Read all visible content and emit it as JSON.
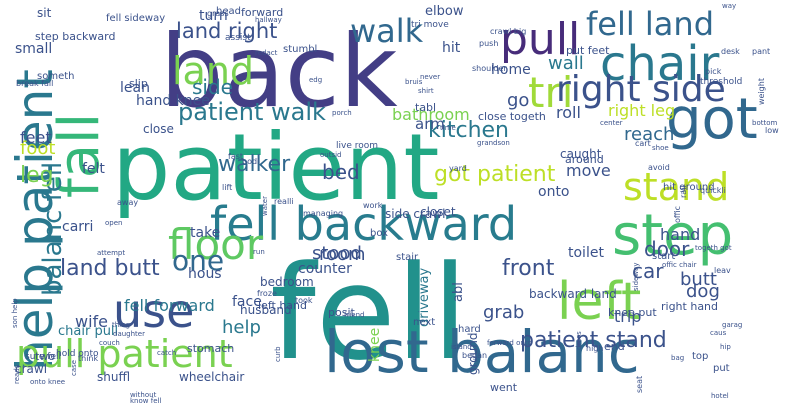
{
  "words": [
    {
      "text": "fell",
      "weight": 100,
      "color": "#21918c"
    },
    {
      "text": "patient",
      "weight": 98,
      "color": "#22a884"
    },
    {
      "text": "back",
      "weight": 95,
      "color": "#433e85"
    },
    {
      "text": "lost balanc",
      "weight": 62,
      "color": "#31688e"
    },
    {
      "text": "fell backward",
      "weight": 55,
      "color": "#287c8e"
    },
    {
      "text": "use",
      "weight": 52,
      "color": "#3b528b"
    },
    {
      "text": "step",
      "weight": 52,
      "color": "#44bf70"
    },
    {
      "text": "got",
      "weight": 50,
      "color": "#31688e"
    },
    {
      "text": "fall",
      "weight": 50,
      "color": "#35b779"
    },
    {
      "text": "help patient",
      "weight": 45,
      "color": "#2a788e"
    },
    {
      "text": "left",
      "weight": 44,
      "color": "#7ad151"
    },
    {
      "text": "pull patient",
      "weight": 42,
      "color": "#7ad151"
    },
    {
      "text": "chair",
      "weight": 40,
      "color": "#2a788e"
    },
    {
      "text": "pull",
      "weight": 38,
      "color": "#472c7a"
    },
    {
      "text": "floor",
      "weight": 36,
      "color": "#5ec962"
    },
    {
      "text": "land",
      "weight": 34,
      "color": "#7ad151"
    },
    {
      "text": "fell land",
      "weight": 32,
      "color": "#31688e"
    },
    {
      "text": "stand",
      "weight": 32,
      "color": "#bddf26"
    },
    {
      "text": "tri",
      "weight": 30,
      "color": "#a0da39"
    },
    {
      "text": "right side",
      "weight": 30,
      "color": "#3b528b"
    },
    {
      "text": "walk",
      "weight": 26,
      "color": "#31688e"
    },
    {
      "text": "balanc fell",
      "weight": 22,
      "color": "#2a788e"
    },
    {
      "text": "one",
      "weight": 24,
      "color": "#31688e"
    },
    {
      "text": "patient walk",
      "weight": 20,
      "color": "#2a788e"
    },
    {
      "text": "land right",
      "weight": 18,
      "color": "#3b528b"
    },
    {
      "text": "kitchen",
      "weight": 20,
      "color": "#2a788e"
    },
    {
      "text": "land butt",
      "weight": 20,
      "color": "#3b528b"
    },
    {
      "text": "patient stand",
      "weight": 18,
      "color": "#3b528b"
    },
    {
      "text": "got patient",
      "weight": 18,
      "color": "#bddf26"
    },
    {
      "text": "side",
      "weight": 18,
      "color": "#2a788e"
    },
    {
      "text": "walker",
      "weight": 18,
      "color": "#31688e"
    },
    {
      "text": "leg",
      "weight": 18,
      "color": "#7ad151"
    },
    {
      "text": "front",
      "weight": 18,
      "color": "#3b528b"
    },
    {
      "text": "bed",
      "weight": 18,
      "color": "#3b528b"
    },
    {
      "text": "door",
      "weight": 18,
      "color": "#3b528b"
    },
    {
      "text": "wall",
      "weight": 16,
      "color": "#2a788e"
    },
    {
      "text": "go",
      "weight": 16,
      "color": "#3b528b"
    },
    {
      "text": "reach",
      "weight": 16,
      "color": "#31688e"
    },
    {
      "text": "help",
      "weight": 16,
      "color": "#2a788e"
    },
    {
      "text": "car",
      "weight": 16,
      "color": "#3b528b"
    },
    {
      "text": "grab",
      "weight": 16,
      "color": "#3b528b"
    },
    {
      "text": "foot",
      "weight": 16,
      "color": "#bddf26"
    },
    {
      "text": "fell forward",
      "weight": 15,
      "color": "#2a788e"
    },
    {
      "text": "hand",
      "weight": 15,
      "color": "#3b528b"
    },
    {
      "text": "stood",
      "weight": 15,
      "color": "#3b528b"
    },
    {
      "text": "trip",
      "weight": 14,
      "color": "#3b528b"
    },
    {
      "text": "wife",
      "weight": 14,
      "color": "#3b528b"
    },
    {
      "text": "right leg",
      "weight": 14,
      "color": "#bddf26"
    },
    {
      "text": "room",
      "weight": 14,
      "color": "#3b528b"
    },
    {
      "text": "dog",
      "weight": 14,
      "color": "#3b528b"
    },
    {
      "text": "butt",
      "weight": 14,
      "color": "#3b528b"
    },
    {
      "text": "knee",
      "weight": 14,
      "color": "#7ad151"
    },
    {
      "text": "bathroom",
      "weight": 13,
      "color": "#7ad151"
    },
    {
      "text": "move",
      "weight": 13,
      "color": "#3b528b"
    },
    {
      "text": "roll",
      "weight": 13,
      "color": "#3b528b"
    },
    {
      "text": "arm",
      "weight": 13,
      "color": "#3b528b"
    },
    {
      "text": "feet",
      "weight": 13,
      "color": "#3b528b"
    },
    {
      "text": "turn",
      "weight": 13,
      "color": "#3b528b"
    },
    {
      "text": "small",
      "weight": 12,
      "color": "#3b528b"
    },
    {
      "text": "lean",
      "weight": 12,
      "color": "#3b528b"
    },
    {
      "text": "hand knee",
      "weight": 12,
      "color": "#3b528b"
    },
    {
      "text": "home",
      "weight": 12,
      "color": "#3b528b"
    },
    {
      "text": "onto",
      "weight": 12,
      "color": "#3b528b"
    },
    {
      "text": "hit",
      "weight": 12,
      "color": "#3b528b"
    },
    {
      "text": "elbow",
      "weight": 12,
      "color": "#3b528b"
    },
    {
      "text": "toilet",
      "weight": 12,
      "color": "#3b528b"
    },
    {
      "text": "carri",
      "weight": 12,
      "color": "#3b528b"
    },
    {
      "text": "take",
      "weight": 12,
      "color": "#3b528b"
    },
    {
      "text": "face",
      "weight": 12,
      "color": "#3b528b"
    },
    {
      "text": "counter",
      "weight": 12,
      "color": "#3b528b"
    },
    {
      "text": "hous",
      "weight": 12,
      "color": "#3b528b"
    },
    {
      "text": "felt",
      "weight": 12,
      "color": "#3b528b"
    },
    {
      "text": "abl",
      "weight": 11,
      "color": "#3b528b"
    },
    {
      "text": "driveway",
      "weight": 11,
      "color": "#2a788e"
    },
    {
      "text": "chair pull",
      "weight": 11,
      "color": "#2a788e"
    },
    {
      "text": "backward land",
      "weight": 11,
      "color": "#3b528b"
    },
    {
      "text": "husband",
      "weight": 11,
      "color": "#3b528b"
    },
    {
      "text": "bedroom",
      "weight": 11,
      "color": "#3b528b"
    },
    {
      "text": "close",
      "weight": 11,
      "color": "#3b528b"
    },
    {
      "text": "sit",
      "weight": 11,
      "color": "#3b528b"
    },
    {
      "text": "wheelchair",
      "weight": 11,
      "color": "#3b528b"
    },
    {
      "text": "shuffl",
      "weight": 10,
      "color": "#3b528b"
    },
    {
      "text": "crawl",
      "weight": 10,
      "color": "#3b528b"
    },
    {
      "text": "two",
      "weight": 10,
      "color": "#3b528b"
    },
    {
      "text": "stomach",
      "weight": 10,
      "color": "#3b528b"
    },
    {
      "text": "caught",
      "weight": 10,
      "color": "#3b528b"
    },
    {
      "text": "around",
      "weight": 10,
      "color": "#3b528b"
    },
    {
      "text": "side crawl",
      "weight": 10,
      "color": "#3b528b"
    },
    {
      "text": "closet",
      "weight": 10,
      "color": "#3b528b"
    },
    {
      "text": "ground",
      "weight": 10,
      "color": "#3b528b"
    },
    {
      "text": "went",
      "weight": 10,
      "color": "#3b528b"
    },
    {
      "text": "posit",
      "weight": 10,
      "color": "#3b528b"
    },
    {
      "text": "tabl",
      "weight": 10,
      "color": "#3b528b"
    },
    {
      "text": "step backward",
      "weight": 10,
      "color": "#3b528b"
    },
    {
      "text": "knee put",
      "weight": 10,
      "color": "#3b528b"
    },
    {
      "text": "right hand",
      "weight": 10,
      "color": "#3b528b"
    },
    {
      "text": "left hand",
      "weight": 10,
      "color": "#3b528b"
    },
    {
      "text": "hit ground",
      "weight": 10,
      "color": "#3b528b"
    },
    {
      "text": "close togeth",
      "weight": 10,
      "color": "#3b528b"
    },
    {
      "text": "put feet",
      "weight": 10,
      "color": "#3b528b"
    },
    {
      "text": "forward",
      "weight": 10,
      "color": "#3b528b"
    },
    {
      "text": "head",
      "weight": 10,
      "color": "#3b528b"
    },
    {
      "text": "end",
      "weight": 9,
      "color": "#3b528b"
    },
    {
      "text": "fell sideway",
      "weight": 9,
      "color": "#3b528b"
    },
    {
      "text": "slip",
      "weight": 9,
      "color": "#3b528b"
    },
    {
      "text": "someth",
      "weight": 9,
      "color": "#3b528b"
    },
    {
      "text": "stumbl",
      "weight": 9,
      "color": "#3b528b"
    },
    {
      "text": "box",
      "weight": 9,
      "color": "#3b528b"
    },
    {
      "text": "stair",
      "weight": 9,
      "color": "#3b528b"
    },
    {
      "text": "start",
      "weight": 9,
      "color": "#3b528b"
    },
    {
      "text": "next",
      "weight": 9,
      "color": "#3b528b"
    },
    {
      "text": "put",
      "weight": 9,
      "color": "#3b528b"
    },
    {
      "text": "top",
      "weight": 9,
      "color": "#3b528b"
    },
    {
      "text": "hard",
      "weight": 9,
      "color": "#3b528b"
    },
    {
      "text": "hold onto",
      "weight": 9,
      "color": "#3b528b"
    },
    {
      "text": "sure fell",
      "weight": 9,
      "color": "#3b528b"
    },
    {
      "text": "grass",
      "weight": 9,
      "color": "#3b528b"
    },
    {
      "text": "break fall",
      "weight": 9,
      "color": "#3b528b"
    },
    {
      "text": "live room",
      "weight": 9,
      "color": "#3b528b"
    },
    {
      "text": "tri move",
      "weight": 9,
      "color": "#3b528b"
    },
    {
      "text": "push",
      "weight": 9,
      "color": "#3b528b"
    },
    {
      "text": "shoulder",
      "weight": 9,
      "color": "#3b528b"
    },
    {
      "text": "crawl big",
      "weight": 9,
      "color": "#3b528b"
    },
    {
      "text": "assist",
      "weight": 9,
      "color": "#3b528b"
    },
    {
      "text": "threshold",
      "weight": 9,
      "color": "#3b528b"
    },
    {
      "text": "pick",
      "weight": 9,
      "color": "#3b528b"
    },
    {
      "text": "desk",
      "weight": 9,
      "color": "#3b528b"
    },
    {
      "text": "pant",
      "weight": 9,
      "color": "#3b528b"
    },
    {
      "text": "bottom",
      "weight": 9,
      "color": "#3b528b"
    },
    {
      "text": "weight",
      "weight": 8,
      "color": "#3b528b"
    },
    {
      "text": "shoe",
      "weight": 8,
      "color": "#3b528b"
    },
    {
      "text": "low",
      "weight": 8,
      "color": "#3b528b"
    },
    {
      "text": "cart",
      "weight": 8,
      "color": "#3b528b"
    },
    {
      "text": "avoid",
      "weight": 8,
      "color": "#3b528b"
    },
    {
      "text": "quickli",
      "weight": 8,
      "color": "#3b528b"
    },
    {
      "text": "togeth got",
      "weight": 8,
      "color": "#3b528b"
    },
    {
      "text": "leav",
      "weight": 8,
      "color": "#3b528b"
    },
    {
      "text": "rail",
      "weight": 8,
      "color": "#3b528b"
    },
    {
      "text": "offic",
      "weight": 8,
      "color": "#3b528b"
    },
    {
      "text": "offic chair",
      "weight": 8,
      "color": "#3b528b"
    },
    {
      "text": "sideway",
      "weight": 8,
      "color": "#3b528b"
    },
    {
      "text": "hip",
      "weight": 8,
      "color": "#3b528b"
    },
    {
      "text": "caus",
      "weight": 8,
      "color": "#3b528b"
    },
    {
      "text": "garag",
      "weight": 8,
      "color": "#3b528b"
    },
    {
      "text": "bag",
      "weight": 8,
      "color": "#3b528b"
    },
    {
      "text": "hotel",
      "weight": 8,
      "color": "#3b528b"
    },
    {
      "text": "seat",
      "weight": 8,
      "color": "#3b528b"
    },
    {
      "text": "high",
      "weight": 8,
      "color": "#3b528b"
    },
    {
      "text": "dress",
      "weight": 8,
      "color": "#3b528b"
    },
    {
      "text": "began",
      "weight": 8,
      "color": "#3b528b"
    },
    {
      "text": "forward onto",
      "weight": 8,
      "color": "#3b528b"
    },
    {
      "text": "island",
      "weight": 8,
      "color": "#3b528b"
    },
    {
      "text": "work",
      "weight": 8,
      "color": "#3b528b"
    },
    {
      "text": "run",
      "weight": 8,
      "color": "#3b528b"
    },
    {
      "text": "water",
      "weight": 8,
      "color": "#3b528b"
    },
    {
      "text": "curb",
      "weight": 8,
      "color": "#3b528b"
    },
    {
      "text": "yard",
      "weight": 8,
      "color": "#3b528b"
    },
    {
      "text": "fast",
      "weight": 8,
      "color": "#3b528b"
    },
    {
      "text": "lift",
      "weight": 8,
      "color": "#3b528b"
    },
    {
      "text": "realli",
      "weight": 8,
      "color": "#3b528b"
    },
    {
      "text": "bodi",
      "weight": 8,
      "color": "#3b528b"
    },
    {
      "text": "managing",
      "weight": 8,
      "color": "#3b528b"
    },
    {
      "text": "away",
      "weight": 8,
      "color": "#3b528b"
    },
    {
      "text": "open",
      "weight": 8,
      "color": "#3b528b"
    },
    {
      "text": "attempt",
      "weight": 8,
      "color": "#3b528b"
    },
    {
      "text": "thing",
      "weight": 8,
      "color": "#3b528b"
    },
    {
      "text": "catch",
      "weight": 8,
      "color": "#3b528b"
    },
    {
      "text": "daughter",
      "weight": 8,
      "color": "#3b528b"
    },
    {
      "text": "think",
      "weight": 8,
      "color": "#3b528b"
    },
    {
      "text": "couch",
      "weight": 8,
      "color": "#3b528b"
    },
    {
      "text": "froze",
      "weight": 8,
      "color": "#3b528b"
    },
    {
      "text": "took",
      "weight": 8,
      "color": "#3b528b"
    },
    {
      "text": "friend",
      "weight": 8,
      "color": "#3b528b"
    },
    {
      "text": "case",
      "weight": 8,
      "color": "#3b528b"
    },
    {
      "text": "know fell",
      "weight": 8,
      "color": "#3b528b"
    },
    {
      "text": "without",
      "weight": 8,
      "color": "#3b528b"
    },
    {
      "text": "onto knee",
      "weight": 8,
      "color": "#3b528b"
    },
    {
      "text": "reads",
      "weight": 8,
      "color": "#3b528b"
    },
    {
      "text": "son help",
      "weight": 8,
      "color": "#3b528b"
    },
    {
      "text": "hallway",
      "weight": 8,
      "color": "#3b528b"
    },
    {
      "text": "redact",
      "weight": 8,
      "color": "#3b528b"
    },
    {
      "text": "bruis",
      "weight": 8,
      "color": "#3b528b"
    },
    {
      "text": "edg",
      "weight": 8,
      "color": "#3b528b"
    },
    {
      "text": "porch",
      "weight": 8,
      "color": "#3b528b"
    },
    {
      "text": "never",
      "weight": 8,
      "color": "#3b528b"
    },
    {
      "text": "grandson",
      "weight": 8,
      "color": "#3b528b"
    },
    {
      "text": "shirt",
      "weight": 8,
      "color": "#3b528b"
    },
    {
      "text": "outsid",
      "weight": 8,
      "color": "#3b528b"
    },
    {
      "text": "time",
      "weight": 8,
      "color": "#3b528b"
    },
    {
      "text": "center",
      "weight": 8,
      "color": "#3b528b"
    },
    {
      "text": "way",
      "weight": 8,
      "color": "#3b528b"
    }
  ]
}
